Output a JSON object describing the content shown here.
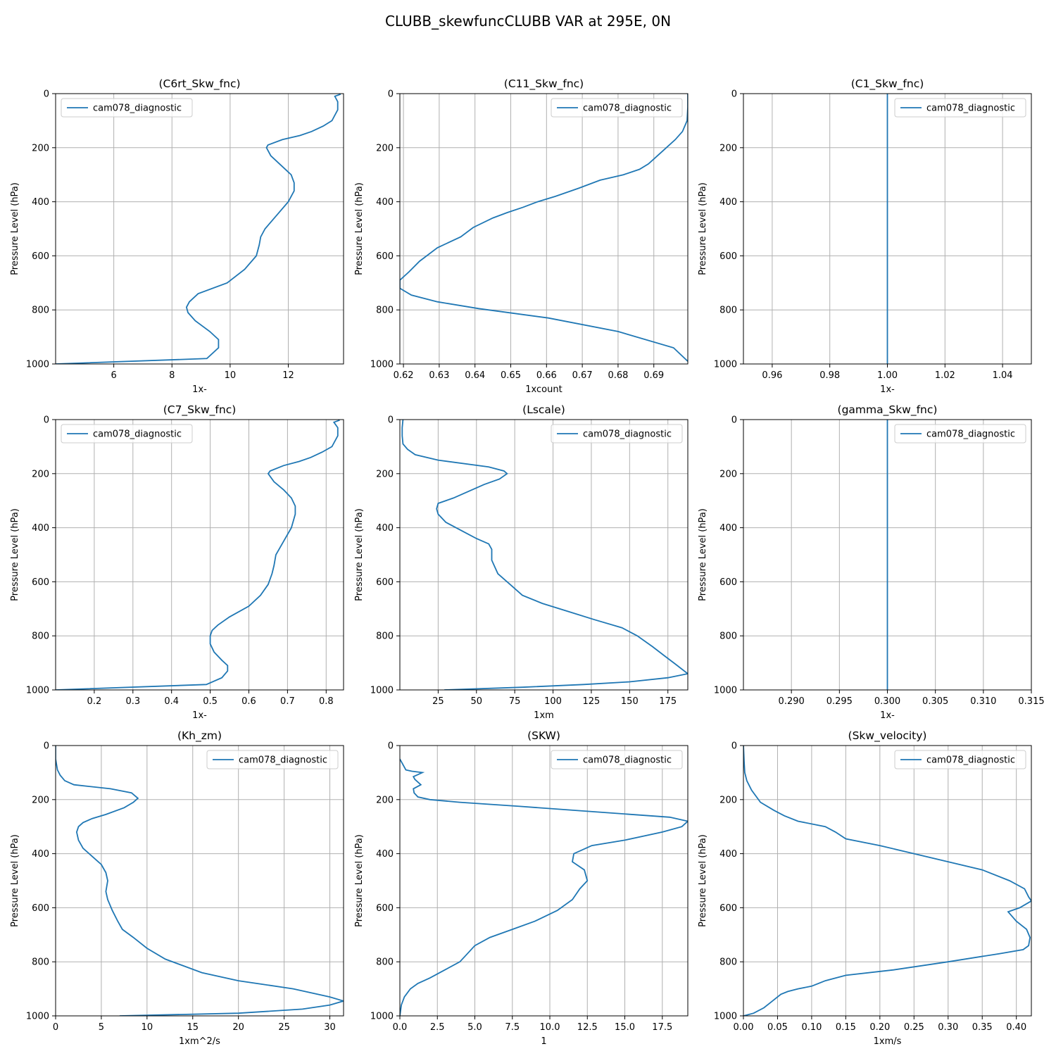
{
  "figure": {
    "title": "CLUBB_skewfuncCLUBB VAR at 295E, 0N"
  },
  "chart_data": [
    {
      "type": "line",
      "title": "(C6rt_Skw_fnc)",
      "xlabel": "1x-",
      "ylabel": "Pressure Level (hPa)",
      "xlim": [
        4.0,
        13.9
      ],
      "ylim": [
        1000,
        0
      ],
      "xticks": [
        6,
        8,
        10,
        12
      ],
      "xtick_labels": [
        "6",
        "8",
        "10",
        "12"
      ],
      "yticks": [
        0,
        200,
        400,
        600,
        800,
        1000
      ],
      "ytick_labels": [
        "0",
        "200",
        "400",
        "600",
        "800",
        "1000"
      ],
      "grid": true,
      "legend_loc": "upper left",
      "series": [
        {
          "name": "cam078_diagnostic",
          "x": [
            13.8,
            13.6,
            13.7,
            13.7,
            13.5,
            13.2,
            12.8,
            12.4,
            11.8,
            11.3,
            11.25,
            11.4,
            11.8,
            12.1,
            12.2,
            12.2,
            12.0,
            11.6,
            11.2,
            11.05,
            11.0,
            10.9,
            10.5,
            9.9,
            8.9,
            8.6,
            8.5,
            8.55,
            8.8,
            9.3,
            9.6,
            9.6,
            9.2,
            4.0
          ],
          "y": [
            2,
            10,
            30,
            60,
            100,
            120,
            140,
            155,
            170,
            190,
            200,
            230,
            270,
            300,
            330,
            360,
            400,
            450,
            500,
            530,
            560,
            600,
            650,
            700,
            740,
            770,
            790,
            810,
            840,
            880,
            910,
            940,
            980,
            1000
          ]
        }
      ]
    },
    {
      "type": "line",
      "title": "(C11_Skw_fnc)",
      "xlabel": "1xcount",
      "ylabel": "Pressure Level (hPa)",
      "xlim": [
        0.619,
        0.6995
      ],
      "ylim": [
        1000,
        0
      ],
      "xticks": [
        0.62,
        0.63,
        0.64,
        0.65,
        0.66,
        0.67,
        0.68,
        0.69
      ],
      "xtick_labels": [
        "0.62",
        "0.63",
        "0.64",
        "0.65",
        "0.66",
        "0.67",
        "0.68",
        "0.69"
      ],
      "yticks": [
        0,
        200,
        400,
        600,
        800,
        1000
      ],
      "ytick_labels": [
        "0",
        "200",
        "400",
        "600",
        "800",
        "1000"
      ],
      "grid": true,
      "legend_loc": "upper right",
      "series": [
        {
          "name": "cam078_diagnostic",
          "x": [
            0.6995,
            0.6995,
            0.6993,
            0.698,
            0.696,
            0.6935,
            0.691,
            0.6885,
            0.686,
            0.6815,
            0.675,
            0.669,
            0.6625,
            0.6575,
            0.6535,
            0.649,
            0.645,
            0.6395,
            0.636,
            0.6295,
            0.6245,
            0.6215,
            0.619,
            0.619,
            0.6222,
            0.6295,
            0.641,
            0.6605,
            0.68,
            0.6955,
            0.6995
          ],
          "y": [
            0,
            50,
            100,
            140,
            170,
            200,
            230,
            260,
            280,
            300,
            320,
            350,
            380,
            400,
            420,
            440,
            460,
            495,
            530,
            570,
            620,
            660,
            690,
            720,
            745,
            770,
            795,
            830,
            880,
            940,
            990
          ]
        }
      ]
    },
    {
      "type": "line",
      "title": "(C1_Skw_fnc)",
      "xlabel": "1x-",
      "ylabel": "Pressure Level (hPa)",
      "xlim": [
        0.95,
        1.05
      ],
      "ylim": [
        1000,
        0
      ],
      "xticks": [
        0.96,
        0.98,
        1.0,
        1.02,
        1.04
      ],
      "xtick_labels": [
        "0.96",
        "0.98",
        "1.00",
        "1.02",
        "1.04"
      ],
      "yticks": [
        0,
        200,
        400,
        600,
        800,
        1000
      ],
      "ytick_labels": [
        "0",
        "200",
        "400",
        "600",
        "800",
        "1000"
      ],
      "grid": true,
      "legend_loc": "upper right",
      "series": [
        {
          "name": "cam078_diagnostic",
          "x": [
            1.0,
            1.0
          ],
          "y": [
            0,
            1000
          ]
        }
      ]
    },
    {
      "type": "line",
      "title": "(C7_Skw_fnc)",
      "xlabel": "1x-",
      "ylabel": "Pressure Level (hPa)",
      "xlim": [
        0.1,
        0.845
      ],
      "ylim": [
        1000,
        0
      ],
      "xticks": [
        0.2,
        0.3,
        0.4,
        0.5,
        0.6,
        0.7,
        0.8
      ],
      "xtick_labels": [
        "0.2",
        "0.3",
        "0.4",
        "0.5",
        "0.6",
        "0.7",
        "0.8"
      ],
      "yticks": [
        0,
        200,
        400,
        600,
        800,
        1000
      ],
      "ytick_labels": [
        "0",
        "200",
        "400",
        "600",
        "800",
        "1000"
      ],
      "grid": true,
      "legend_loc": "upper left",
      "series": [
        {
          "name": "cam078_diagnostic",
          "x": [
            0.835,
            0.82,
            0.83,
            0.83,
            0.815,
            0.79,
            0.76,
            0.73,
            0.69,
            0.655,
            0.65,
            0.665,
            0.69,
            0.71,
            0.72,
            0.72,
            0.71,
            0.69,
            0.67,
            0.665,
            0.66,
            0.65,
            0.63,
            0.6,
            0.55,
            0.52,
            0.505,
            0.5,
            0.5,
            0.51,
            0.53,
            0.545,
            0.545,
            0.53,
            0.49,
            0.1
          ],
          "y": [
            2,
            10,
            30,
            60,
            100,
            120,
            140,
            155,
            170,
            190,
            200,
            230,
            260,
            290,
            320,
            350,
            400,
            450,
            500,
            540,
            570,
            610,
            650,
            690,
            730,
            760,
            780,
            800,
            830,
            860,
            890,
            910,
            930,
            955,
            980,
            1000
          ]
        }
      ]
    },
    {
      "type": "line",
      "title": "(Lscale)",
      "xlabel": "1xm",
      "ylabel": "Pressure Level (hPa)",
      "xlim": [
        0,
        188
      ],
      "ylim": [
        1000,
        0
      ],
      "xticks": [
        25,
        50,
        75,
        100,
        125,
        150,
        175
      ],
      "xtick_labels": [
        "25",
        "50",
        "75",
        "100",
        "125",
        "150",
        "175"
      ],
      "yticks": [
        0,
        200,
        400,
        600,
        800,
        1000
      ],
      "ytick_labels": [
        "0",
        "200",
        "400",
        "600",
        "800",
        "1000"
      ],
      "grid": true,
      "legend_loc": "upper right",
      "series": [
        {
          "name": "cam078_diagnostic",
          "x": [
            2,
            1.5,
            1.5,
            2,
            5,
            10,
            25,
            58,
            68,
            70,
            65,
            55,
            45,
            35,
            25,
            24,
            25,
            30,
            40,
            50,
            58,
            60,
            60,
            64,
            72,
            80,
            93,
            110,
            127,
            145,
            155,
            165,
            173,
            180,
            188,
            175,
            150,
            120,
            80,
            29
          ],
          "y": [
            0,
            30,
            60,
            90,
            110,
            130,
            150,
            175,
            190,
            200,
            220,
            240,
            265,
            290,
            310,
            330,
            350,
            380,
            410,
            440,
            460,
            480,
            520,
            570,
            610,
            650,
            680,
            710,
            740,
            770,
            800,
            840,
            875,
            905,
            940,
            955,
            970,
            980,
            990,
            1000
          ]
        }
      ]
    },
    {
      "type": "line",
      "title": "(gamma_Skw_fnc)",
      "xlabel": "1x-",
      "ylabel": "Pressure Level (hPa)",
      "xlim": [
        0.285,
        0.315
      ],
      "ylim": [
        1000,
        0
      ],
      "xticks": [
        0.29,
        0.295,
        0.3,
        0.305,
        0.31,
        0.315
      ],
      "xtick_labels": [
        "0.290",
        "0.295",
        "0.300",
        "0.305",
        "0.310",
        "0.315"
      ],
      "yticks": [
        0,
        200,
        400,
        600,
        800,
        1000
      ],
      "ytick_labels": [
        "0",
        "200",
        "400",
        "600",
        "800",
        "1000"
      ],
      "grid": true,
      "legend_loc": "upper right",
      "series": [
        {
          "name": "cam078_diagnostic",
          "x": [
            0.3,
            0.3
          ],
          "y": [
            0,
            1000
          ]
        }
      ]
    },
    {
      "type": "line",
      "title": "(Kh_zm)",
      "xlabel": "1xm^2/s",
      "ylabel": "Pressure Level (hPa)",
      "xlim": [
        0,
        31.5
      ],
      "ylim": [
        1000,
        0
      ],
      "xticks": [
        0,
        5,
        10,
        15,
        20,
        25,
        30
      ],
      "xtick_labels": [
        "0",
        "5",
        "10",
        "15",
        "20",
        "25",
        "30"
      ],
      "yticks": [
        0,
        200,
        400,
        600,
        800,
        1000
      ],
      "ytick_labels": [
        "0",
        "200",
        "400",
        "600",
        "800",
        "1000"
      ],
      "grid": true,
      "legend_loc": "upper right",
      "series": [
        {
          "name": "cam078_diagnostic",
          "x": [
            0,
            0,
            0.2,
            0.5,
            1,
            2,
            6,
            8.3,
            9,
            8.5,
            7.5,
            5.5,
            4,
            3,
            2.5,
            2.3,
            2.5,
            3,
            4,
            5,
            5.5,
            5.7,
            5.6,
            5.5,
            5.7,
            6.2,
            6.8,
            7.3,
            8.5,
            10,
            12,
            14,
            16,
            20,
            26,
            30,
            31.5,
            30,
            27,
            20,
            7
          ],
          "y": [
            0,
            50,
            90,
            110,
            130,
            145,
            160,
            175,
            195,
            210,
            230,
            255,
            270,
            285,
            300,
            320,
            350,
            380,
            410,
            440,
            470,
            500,
            520,
            540,
            570,
            610,
            650,
            680,
            710,
            750,
            790,
            815,
            840,
            870,
            900,
            930,
            945,
            960,
            975,
            990,
            1000
          ]
        }
      ]
    },
    {
      "type": "line",
      "title": "(SKW)",
      "xlabel": "1",
      "ylabel": "Pressure Level (hPa)",
      "xlim": [
        0,
        19.2
      ],
      "ylim": [
        1000,
        0
      ],
      "xticks": [
        0,
        2.5,
        5,
        7.5,
        10,
        12.5,
        15,
        17.5
      ],
      "xtick_labels": [
        "0.0",
        "2.5",
        "5.0",
        "7.5",
        "10.0",
        "12.5",
        "15.0",
        "17.5"
      ],
      "yticks": [
        0,
        200,
        400,
        600,
        800,
        1000
      ],
      "ytick_labels": [
        "0",
        "200",
        "400",
        "600",
        "800",
        "1000"
      ],
      "grid": true,
      "legend_loc": "upper right",
      "series": [
        {
          "name": "cam078_diagnostic",
          "x": [
            0,
            0.2,
            0.4,
            0.8,
            1.5,
            0.9,
            1.0,
            1.4,
            0.9,
            0.95,
            1.2,
            2.0,
            4.0,
            8.0,
            13.0,
            18.0,
            19.2,
            18.8,
            17.5,
            15.0,
            12.8,
            11.6,
            11.5,
            12.3,
            12.5,
            12.0,
            11.5,
            10.5,
            9.0,
            7.5,
            6.0,
            5.0,
            4.5,
            4.0,
            3.0,
            2.0,
            1.2,
            0.7,
            0.3,
            0.1,
            0
          ],
          "y": [
            50,
            70,
            90,
            95,
            100,
            115,
            125,
            145,
            160,
            175,
            190,
            200,
            210,
            225,
            245,
            265,
            280,
            300,
            320,
            350,
            370,
            400,
            430,
            460,
            500,
            530,
            570,
            610,
            650,
            680,
            710,
            740,
            770,
            800,
            830,
            860,
            880,
            900,
            930,
            960,
            1000
          ]
        }
      ]
    },
    {
      "type": "line",
      "title": "(Skw_velocity)",
      "xlabel": "1xm/s",
      "ylabel": "Pressure Level (hPa)",
      "xlim": [
        0,
        0.422
      ],
      "ylim": [
        1000,
        0
      ],
      "xticks": [
        0,
        0.05,
        0.1,
        0.15,
        0.2,
        0.25,
        0.3,
        0.35,
        0.4
      ],
      "xtick_labels": [
        "0.00",
        "0.05",
        "0.10",
        "0.15",
        "0.20",
        "0.25",
        "0.30",
        "0.35",
        "0.40"
      ],
      "yticks": [
        0,
        200,
        400,
        600,
        800,
        1000
      ],
      "ytick_labels": [
        "0",
        "200",
        "400",
        "600",
        "800",
        "1000"
      ],
      "grid": true,
      "legend_loc": "upper right",
      "series": [
        {
          "name": "cam078_diagnostic",
          "x": [
            0,
            0.001,
            0.002,
            0.005,
            0.012,
            0.025,
            0.045,
            0.06,
            0.08,
            0.12,
            0.135,
            0.15,
            0.2,
            0.25,
            0.3,
            0.35,
            0.39,
            0.412,
            0.418,
            0.422,
            0.405,
            0.388,
            0.4,
            0.415,
            0.42,
            0.418,
            0.41,
            0.375,
            0.3,
            0.22,
            0.15,
            0.12,
            0.1,
            0.08,
            0.065,
            0.055,
            0.05,
            0.04,
            0.03,
            0.015,
            0
          ],
          "y": [
            0,
            60,
            100,
            130,
            165,
            210,
            240,
            260,
            280,
            300,
            320,
            345,
            370,
            400,
            430,
            460,
            500,
            530,
            560,
            575,
            600,
            615,
            650,
            680,
            710,
            740,
            755,
            770,
            800,
            830,
            850,
            870,
            890,
            900,
            910,
            920,
            930,
            950,
            970,
            990,
            1000
          ]
        }
      ]
    }
  ]
}
